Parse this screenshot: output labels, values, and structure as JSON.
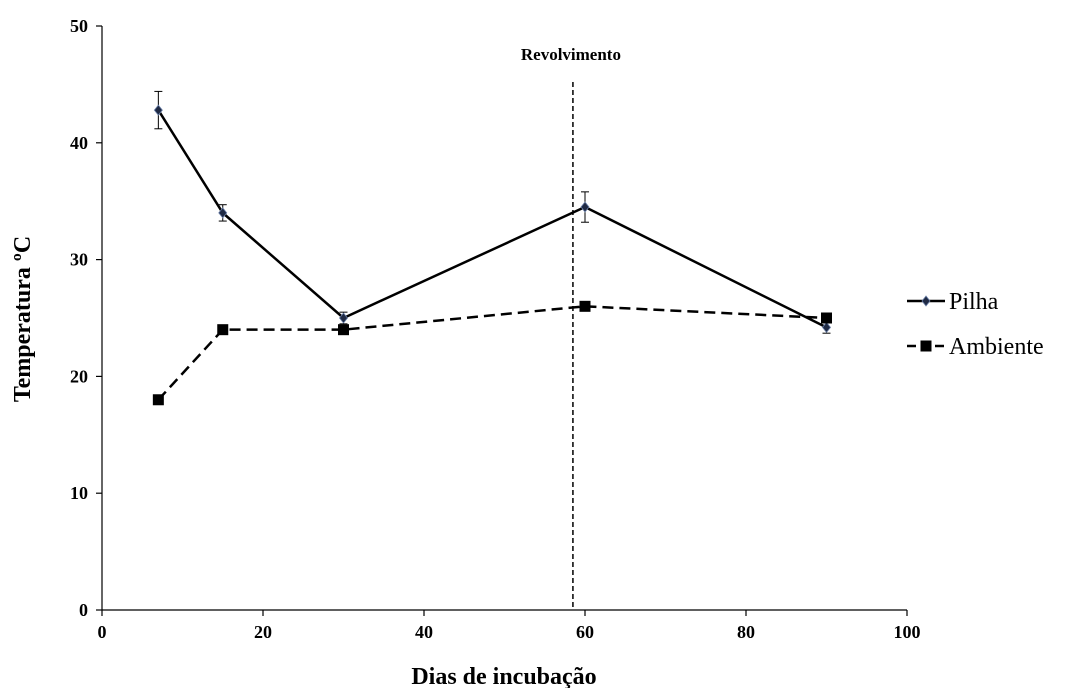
{
  "chart_data": {
    "type": "line",
    "title": "",
    "xlabel": "Dias de incubação",
    "ylabel": "Temperatura ºC",
    "xlim": [
      0,
      100
    ],
    "ylim": [
      0,
      50
    ],
    "x_ticks": [
      0,
      20,
      40,
      60,
      80,
      100
    ],
    "y_ticks": [
      0,
      10,
      20,
      30,
      40,
      50
    ],
    "grid": false,
    "legend_position": "right",
    "series": [
      {
        "name": "Pilha",
        "style": "solid",
        "marker": "diamond",
        "color": "#000000",
        "marker_color": "#1f2a44",
        "x": [
          7,
          15,
          30,
          60,
          90
        ],
        "y": [
          42.8,
          34.0,
          25.0,
          34.5,
          24.2
        ],
        "error": [
          1.6,
          0.7,
          0.5,
          1.3,
          0.5
        ]
      },
      {
        "name": "Ambiente",
        "style": "dashed",
        "marker": "square",
        "color": "#000000",
        "marker_color": "#000000",
        "x": [
          7,
          15,
          30,
          60,
          90
        ],
        "y": [
          18,
          24,
          24,
          26,
          25
        ]
      }
    ],
    "annotations": [
      {
        "text": "Revolvimento",
        "x": 58.5,
        "style": "dashed-vertical-line"
      }
    ]
  }
}
